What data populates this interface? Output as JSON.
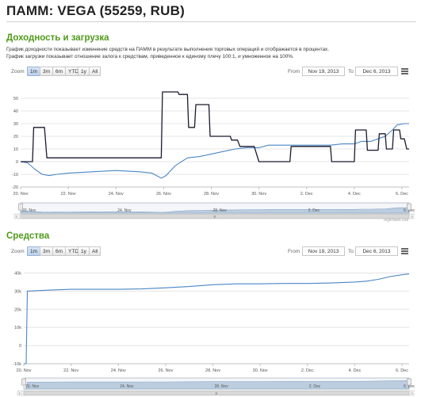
{
  "page": {
    "title": "ПАММ: VEGA (55259, RUB)"
  },
  "sections": {
    "yield": {
      "title": "Доходность и загрузка",
      "desc1": "График доходности показывает изменение средств на ПАММ в результате выполнения торговых операций и отображается в процентах.",
      "desc2": "График загрузки показывает отношение залога к средствам, приведенное к единому плечу 100:1, и умноженное на 100%.",
      "credits": "Highcharts.com"
    },
    "funds": {
      "title": "Средства"
    }
  },
  "toolbar": {
    "zoom_label": "Zoom",
    "buttons": [
      "1m",
      "3m",
      "6m",
      "YTD",
      "1y",
      "All"
    ],
    "active": "1m",
    "from_label": "From",
    "from_value": "Nov 19, 2013",
    "to_label": "To",
    "to_value": "Dec 6, 2013"
  },
  "colors": {
    "yield_line": "#4a86c5",
    "load_line": "#1a1a2e",
    "funds_line": "#4a86c5",
    "navigator_fill": "#b7c9dd",
    "section_title": "#4f9a1a"
  },
  "icons": {
    "menu": "hamburger-menu-icon",
    "scroll_left": "chevron-left-icon",
    "scroll_right": "chevron-right-icon",
    "scroll_grip": "grip-icon"
  },
  "chart_data": [
    {
      "type": "line",
      "title": "",
      "xlabel": "",
      "ylabel": "",
      "x_ticks": [
        "20. Nov",
        "22. Nov",
        "24. Nov",
        "26. Nov",
        "28. Nov",
        "30. Nov",
        "2. Dec",
        "4. Dec",
        "6. Dec"
      ],
      "y_ticks": [
        "-20",
        "-10",
        "0",
        "10",
        "20",
        "30",
        "40",
        "50"
      ],
      "ylim": [
        -20,
        60
      ],
      "x_range_days": [
        20,
        36.3
      ],
      "grid": true,
      "navigator": {
        "x_ticks": [
          "20. Nov",
          "24. Nov",
          "28. Nov",
          "2. Dec",
          "6. Dec"
        ]
      },
      "series": [
        {
          "values": [
            [
              20.0,
              0
            ],
            [
              20.3,
              -1
            ],
            [
              20.6,
              -6
            ],
            [
              20.9,
              -10
            ],
            [
              21.2,
              -11
            ],
            [
              21.5,
              -10
            ],
            [
              22.0,
              -9
            ],
            [
              23.0,
              -8
            ],
            [
              24.0,
              -7
            ],
            [
              25.0,
              -8
            ],
            [
              25.5,
              -9
            ],
            [
              25.9,
              -13
            ],
            [
              26.1,
              -11
            ],
            [
              26.5,
              -3
            ],
            [
              27.0,
              3
            ],
            [
              27.5,
              4
            ],
            [
              28.0,
              6
            ],
            [
              28.5,
              8
            ],
            [
              29.0,
              10
            ],
            [
              29.5,
              11
            ],
            [
              30.0,
              11
            ],
            [
              30.4,
              13
            ],
            [
              31.0,
              13
            ],
            [
              32.0,
              13
            ],
            [
              33.0,
              13
            ],
            [
              33.5,
              14
            ],
            [
              34.0,
              14
            ],
            [
              34.3,
              16
            ],
            [
              34.7,
              16
            ],
            [
              35.0,
              18
            ],
            [
              35.3,
              20
            ],
            [
              35.6,
              25
            ],
            [
              35.8,
              29
            ],
            [
              36.1,
              30
            ],
            [
              36.3,
              30
            ]
          ]
        },
        {
          "values": [
            [
              20.0,
              0
            ],
            [
              20.5,
              0
            ],
            [
              20.55,
              27
            ],
            [
              21.0,
              27
            ],
            [
              21.1,
              3
            ],
            [
              25.9,
              3
            ],
            [
              25.95,
              55
            ],
            [
              26.6,
              55
            ],
            [
              26.65,
              53
            ],
            [
              27.0,
              53
            ],
            [
              27.05,
              27
            ],
            [
              27.3,
              27
            ],
            [
              27.35,
              45
            ],
            [
              27.9,
              45
            ],
            [
              27.95,
              20
            ],
            [
              28.8,
              20
            ],
            [
              28.85,
              17
            ],
            [
              29.1,
              17
            ],
            [
              29.2,
              12
            ],
            [
              29.8,
              12
            ],
            [
              30.0,
              0
            ],
            [
              31.3,
              0
            ],
            [
              31.35,
              12
            ],
            [
              33.0,
              12
            ],
            [
              33.05,
              0
            ],
            [
              34.0,
              0
            ],
            [
              34.05,
              25
            ],
            [
              34.5,
              25
            ],
            [
              34.55,
              9
            ],
            [
              35.0,
              9
            ],
            [
              35.05,
              22
            ],
            [
              35.3,
              22
            ],
            [
              35.35,
              10
            ],
            [
              35.6,
              10
            ],
            [
              35.65,
              25
            ],
            [
              35.9,
              25
            ],
            [
              35.95,
              18
            ],
            [
              36.1,
              18
            ],
            [
              36.2,
              10
            ],
            [
              36.3,
              10
            ]
          ]
        }
      ]
    },
    {
      "type": "line",
      "title": "",
      "xlabel": "",
      "ylabel": "",
      "x_ticks": [
        "20. Nov",
        "22. Nov",
        "24. Nov",
        "26. Nov",
        "28. Nov",
        "30. Nov",
        "2. Dec",
        "4. Dec",
        "6. Dec"
      ],
      "y_ticks": [
        "-10k",
        "0",
        "10k",
        "20k",
        "30k",
        "40k"
      ],
      "ylim": [
        -10000,
        45000
      ],
      "x_range_days": [
        20,
        36.3
      ],
      "grid": true,
      "navigator": {
        "x_ticks": [
          "20. Nov",
          "24. Nov",
          "28. Nov",
          "2. Dec",
          "6. Dec"
        ]
      },
      "series": [
        {
          "values": [
            [
              20.0,
              -10000
            ],
            [
              20.1,
              -10000
            ],
            [
              20.15,
              30000
            ],
            [
              21.0,
              30500
            ],
            [
              22.0,
              31000
            ],
            [
              23.0,
              31000
            ],
            [
              24.0,
              31000
            ],
            [
              25.0,
              31200
            ],
            [
              26.0,
              31800
            ],
            [
              27.0,
              32500
            ],
            [
              28.0,
              33500
            ],
            [
              29.0,
              34000
            ],
            [
              30.0,
              34000
            ],
            [
              31.0,
              34200
            ],
            [
              32.0,
              34200
            ],
            [
              33.0,
              34500
            ],
            [
              34.0,
              35000
            ],
            [
              34.5,
              35500
            ],
            [
              35.0,
              36500
            ],
            [
              35.5,
              38000
            ],
            [
              36.0,
              39000
            ],
            [
              36.3,
              39500
            ]
          ]
        }
      ]
    }
  ]
}
